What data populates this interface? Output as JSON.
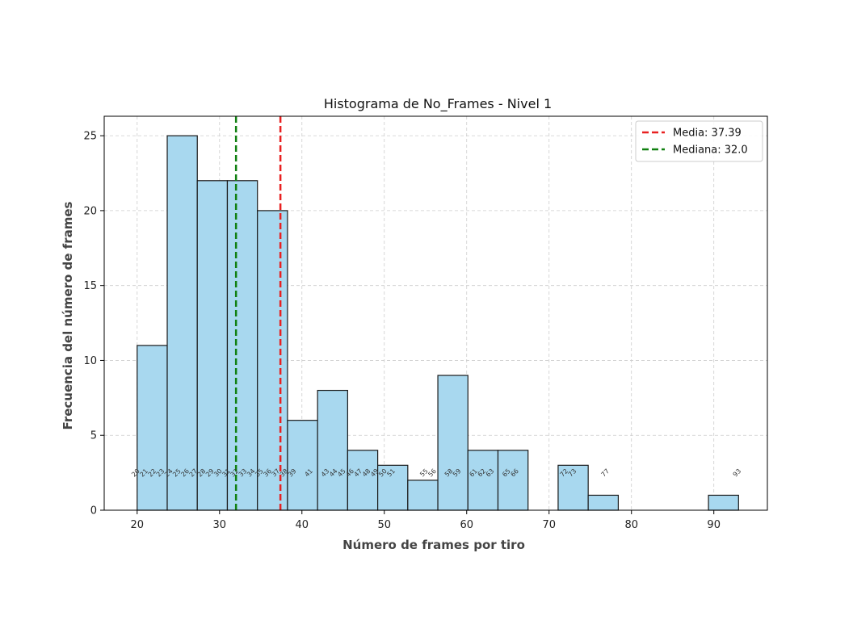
{
  "chart_data": {
    "type": "bar",
    "title": "Histograma de No_Frames - Nivel 1",
    "xlabel": "Número de frames por tiro",
    "ylabel": "Frecuencia del número de frames",
    "xlim": [
      16,
      96.5
    ],
    "ylim": [
      0,
      26.3
    ],
    "x_ticks": [
      20,
      30,
      40,
      50,
      60,
      70,
      80,
      90
    ],
    "y_ticks": [
      0,
      5,
      10,
      15,
      20,
      25
    ],
    "grid": true,
    "bins": [
      {
        "x0": 20.0,
        "x1": 23.65,
        "count": 11
      },
      {
        "x0": 23.65,
        "x1": 27.3,
        "count": 25
      },
      {
        "x0": 27.3,
        "x1": 30.95,
        "count": 22
      },
      {
        "x0": 30.95,
        "x1": 34.6,
        "count": 22
      },
      {
        "x0": 34.6,
        "x1": 38.25,
        "count": 20
      },
      {
        "x0": 38.25,
        "x1": 41.9,
        "count": 6
      },
      {
        "x0": 41.9,
        "x1": 45.55,
        "count": 8
      },
      {
        "x0": 45.55,
        "x1": 49.2,
        "count": 4
      },
      {
        "x0": 49.2,
        "x1": 52.85,
        "count": 3
      },
      {
        "x0": 52.85,
        "x1": 56.5,
        "count": 2
      },
      {
        "x0": 56.5,
        "x1": 60.15,
        "count": 9
      },
      {
        "x0": 60.15,
        "x1": 63.8,
        "count": 4
      },
      {
        "x0": 63.8,
        "x1": 67.45,
        "count": 4
      },
      {
        "x0": 67.45,
        "x1": 71.1,
        "count": 0
      },
      {
        "x0": 71.1,
        "x1": 74.75,
        "count": 3
      },
      {
        "x0": 74.75,
        "x1": 78.4,
        "count": 1
      },
      {
        "x0": 78.4,
        "x1": 82.05,
        "count": 0
      },
      {
        "x0": 82.05,
        "x1": 85.7,
        "count": 0
      },
      {
        "x0": 85.7,
        "x1": 89.35,
        "count": 0
      },
      {
        "x0": 89.35,
        "x1": 93.0,
        "count": 1
      }
    ],
    "bar_color": "#a8d8ef",
    "bar_edge_color": "#1a1a1a",
    "reference_lines": [
      {
        "label": "Media: 37.39",
        "value": 37.39,
        "color": "#e82020",
        "style": "dashed"
      },
      {
        "label": "Mediana: 32.0",
        "value": 32.0,
        "color": "#108010",
        "style": "dashed"
      }
    ],
    "legend_position": "top-right",
    "value_labels": {
      "y": 2.4,
      "values": [
        20,
        21,
        22,
        23,
        24,
        25,
        26,
        27,
        28,
        29,
        30,
        31,
        32,
        33,
        34,
        35,
        36,
        37,
        38,
        39,
        41,
        43,
        44,
        45,
        46,
        47,
        48,
        49,
        50,
        51,
        55,
        56,
        58,
        59,
        61,
        62,
        63,
        65,
        66,
        72,
        73,
        77,
        93
      ]
    }
  }
}
